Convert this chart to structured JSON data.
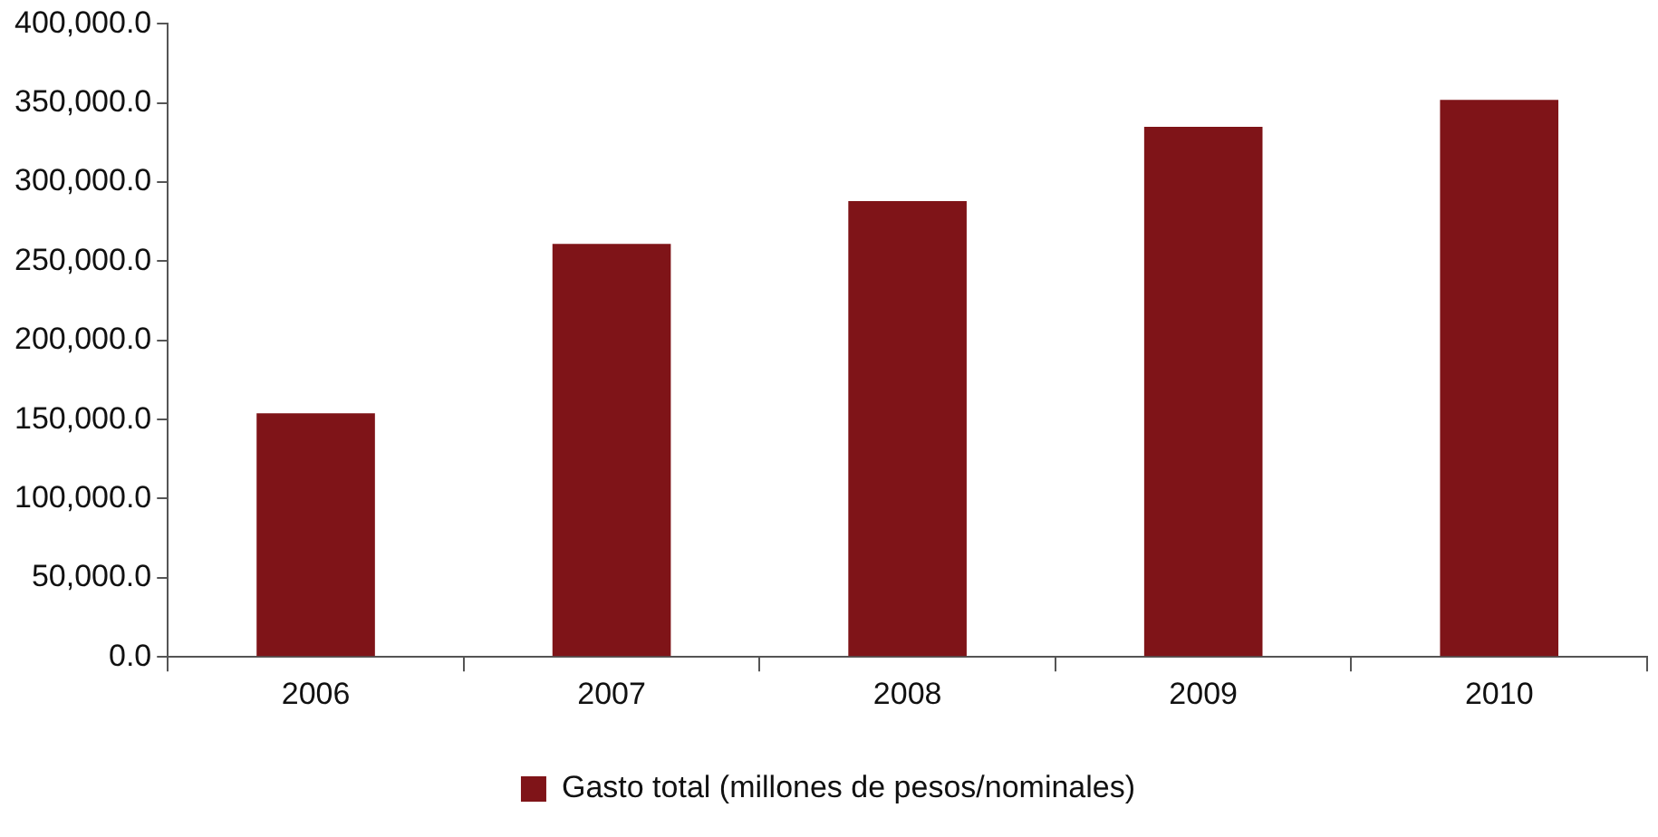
{
  "chart_data": {
    "type": "bar",
    "categories": [
      "2006",
      "2007",
      "2008",
      "2009",
      "2010"
    ],
    "series": [
      {
        "name": "Gasto total (millones de pesos/nominales)",
        "color": "#7f1418",
        "values": [
          154000,
          261000,
          288000,
          335000,
          352000
        ]
      }
    ],
    "ylim": [
      0,
      400000
    ],
    "yticks": [
      {
        "value": 0,
        "label": "0.0"
      },
      {
        "value": 50000,
        "label": "50,000.0"
      },
      {
        "value": 100000,
        "label": "100,000.0"
      },
      {
        "value": 150000,
        "label": "150,000.0"
      },
      {
        "value": 200000,
        "label": "200,000.0"
      },
      {
        "value": 250000,
        "label": "250,000.0"
      },
      {
        "value": 300000,
        "label": "300,000.0"
      },
      {
        "value": 350000,
        "label": "350,000.0"
      },
      {
        "value": 400000,
        "label": "400,000.0"
      }
    ],
    "grid": false,
    "legend": "bottom"
  }
}
